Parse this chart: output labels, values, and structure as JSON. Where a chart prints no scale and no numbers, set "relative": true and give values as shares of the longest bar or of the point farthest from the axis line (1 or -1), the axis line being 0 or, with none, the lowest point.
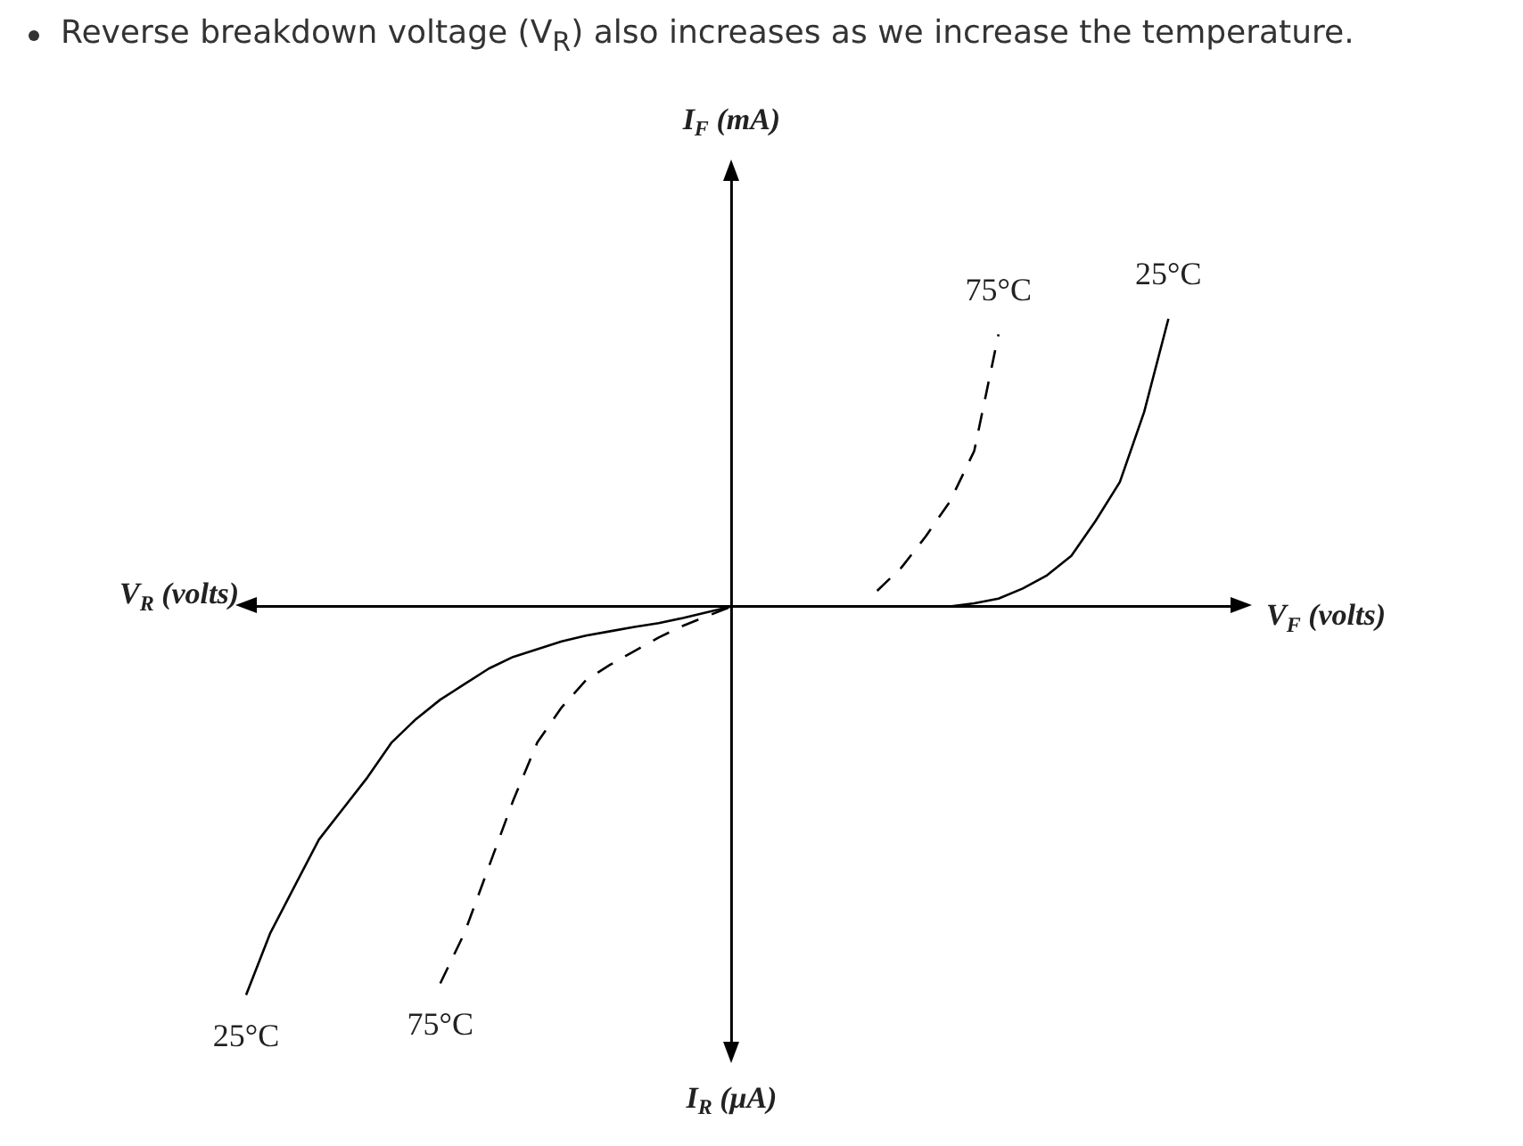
{
  "chart_data": {
    "type": "line",
    "title": "Reverse breakdown voltage (V$_{R}$) also increases as we increase the temperature.",
    "xlabel": "V$_{F}$ (volts)",
    "annotations": [
      "V$_{R}$ (volts)",
      "I$_{F}$ (mA)",
      "I$_{R}$ (μA)"
    ],
    "relative": true,
    "legend": false,
    "marker": "none",
    "categories": [
      null,
      null,
      null,
      null,
      null,
      null,
      null,
      null,
      null,
      null,
      null,
      null,
      null,
      null,
      null,
      null,
      null,
      null,
      null,
      null,
      null,
      null,
      null,
      null,
      null,
      null,
      null,
      null,
      null,
      null,
      null,
      null,
      null,
      null,
      null,
      null,
      null,
      null,
      null,
      null,
      null,
      null
    ],
    "series": [
      {
        "name": "25°C",
        "color": "#000000",
        "line_style": "solid",
        "values": [
          -1,
          -0.84,
          -0.72,
          -0.6,
          -0.52,
          -0.44,
          -0.35,
          -0.29,
          -0.24,
          -0.2,
          -0.16,
          -0.13,
          -0.11,
          -0.09,
          -0.075,
          -0.064,
          -0.053,
          -0.043,
          -0.03,
          -0.015,
          0,
          0,
          0,
          0,
          0,
          0,
          0,
          0,
          0,
          0,
          0.008,
          0.02,
          0.046,
          0.08,
          0.13,
          0.22,
          0.32,
          0.5,
          0.74,
          null,
          null,
          null
        ]
      },
      {
        "name": "75°C",
        "color": "#000000",
        "line_style": "dashed",
        "values": [
          null,
          null,
          null,
          null,
          null,
          null,
          null,
          null,
          -0.97,
          -0.84,
          -0.67,
          -0.5,
          -0.35,
          -0.26,
          -0.19,
          -0.15,
          -0.115,
          -0.08,
          -0.05,
          -0.025,
          0,
          null,
          null,
          null,
          null,
          null,
          0.04,
          0.1,
          0.18,
          0.27,
          0.4,
          0.7,
          null,
          null,
          null,
          null,
          null,
          null,
          null,
          null,
          null,
          null
        ]
      }
    ]
  }
}
